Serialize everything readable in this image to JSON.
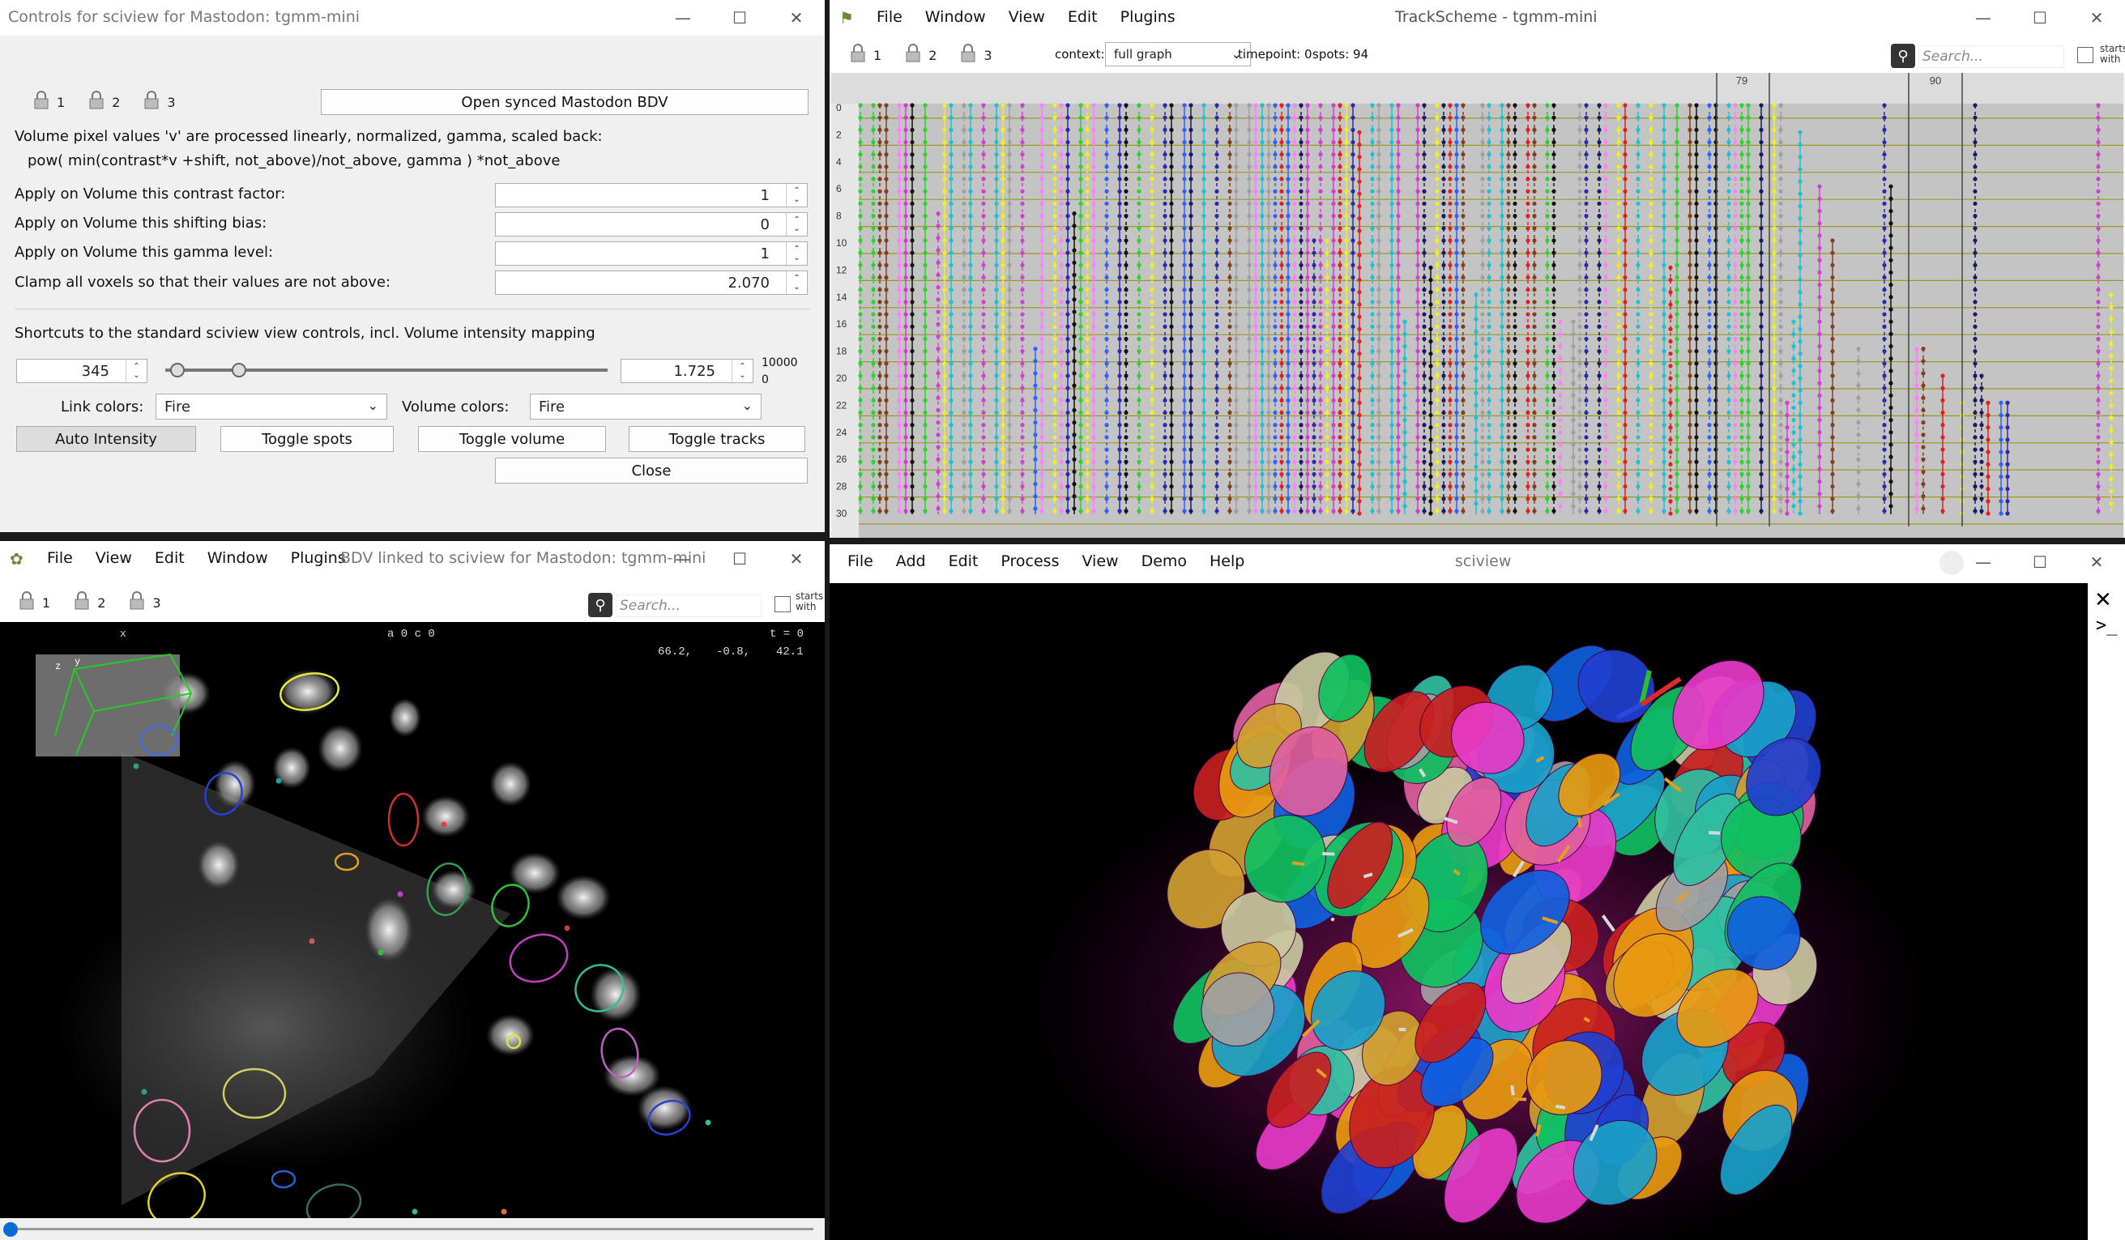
{
  "controls": {
    "title": "Controls for sciview for Mastodon: tgmm-mini",
    "locks": [
      "1",
      "2",
      "3"
    ],
    "open_bdv": "Open synced Mastodon BDV",
    "desc1": "Volume pixel values 'v' are processed linearly, normalized, gamma, scaled back:",
    "desc2": "pow( min(contrast*v +shift, not_above)/not_above, gamma ) *not_above",
    "contrast_label": "Apply on Volume this contrast factor:",
    "contrast_value": "1",
    "shift_label": "Apply on Volume this shifting bias:",
    "shift_value": "0",
    "gamma_label": "Apply on Volume this gamma level:",
    "gamma_value": "1",
    "clamp_label": "Clamp all voxels so that their values are not above:",
    "clamp_value": "2.070",
    "shortcuts_label": "Shortcuts to the standard sciview view controls, incl. Volume intensity mapping",
    "range_min": "345",
    "range_max": "1.725",
    "range_top": "10000",
    "range_bottom": "0",
    "link_colors_label": "Link colors:",
    "link_colors_value": "Fire",
    "volume_colors_label": "Volume colors:",
    "volume_colors_value": "Fire",
    "auto_intensity": "Auto Intensity",
    "toggle_spots": "Toggle spots",
    "toggle_volume": "Toggle volume",
    "toggle_tracks": "Toggle tracks",
    "close": "Close"
  },
  "trackscheme": {
    "title": "TrackScheme - tgmm-mini",
    "menu": [
      "File",
      "Window",
      "View",
      "Edit",
      "Plugins"
    ],
    "locks": [
      "1",
      "2",
      "3"
    ],
    "context_label": "context:",
    "context_value": "full graph",
    "timepoint": "timepoint: 0",
    "spots": "spots: 94",
    "search_placeholder": "Search...",
    "starts_with_1": "starts",
    "starts_with_2": "with",
    "col_labels": [
      "79",
      "90"
    ],
    "row_labels": [
      "0",
      "2",
      "4",
      "6",
      "8",
      "10",
      "12",
      "14",
      "16",
      "18",
      "20",
      "22",
      "24",
      "26",
      "28",
      "30"
    ]
  },
  "bdv": {
    "title": "BDV linked to sciview for Mastodon: tgmm-mini",
    "menu": [
      "File",
      "View",
      "Edit",
      "Window",
      "Plugins"
    ],
    "locks": [
      "1",
      "2",
      "3"
    ],
    "search_placeholder": "Search...",
    "starts_with_1": "starts",
    "starts_with_2": "with",
    "info_left": "a 0 c 0",
    "info_t": "t = 0",
    "coord_x": "66.2,",
    "coord_y": "-0.8,",
    "coord_z": "42.1",
    "axis_x": "x",
    "axis_y": "y",
    "axis_z": "z"
  },
  "sciview": {
    "title": "sciview",
    "menu": [
      "File",
      "Add",
      "Edit",
      "Process",
      "View",
      "Demo",
      "Help"
    ]
  }
}
